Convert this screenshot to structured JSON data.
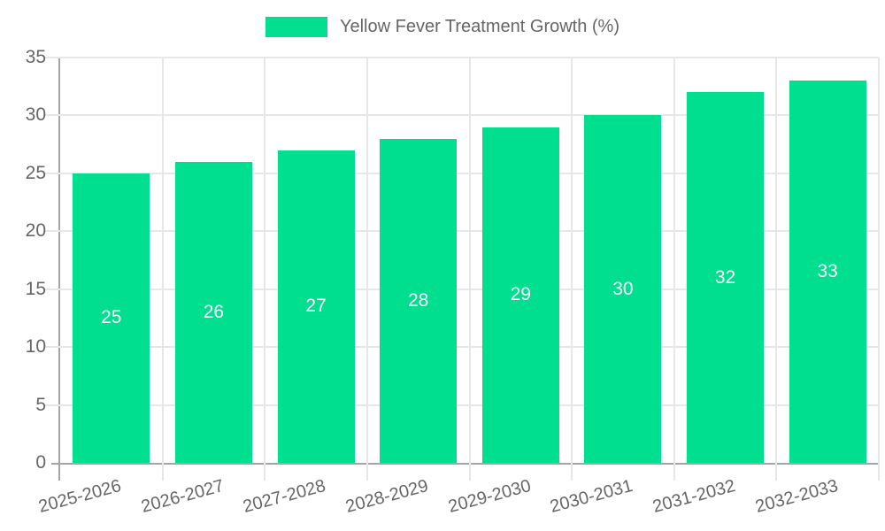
{
  "chart_data": {
    "type": "bar",
    "title": "Yellow Fever Treatment Growth (%)",
    "categories": [
      "2025-2026",
      "2026-2027",
      "2027-2028",
      "2028-2029",
      "2029-2030",
      "2030-2031",
      "2031-2032",
      "2032-2033"
    ],
    "values": [
      25,
      26,
      27,
      28,
      29,
      30,
      32,
      33
    ],
    "bar_value_labels": [
      "25",
      "26",
      "27",
      "28",
      "29",
      "30",
      "32",
      "33"
    ],
    "ylim": [
      0,
      35
    ],
    "yticks": [
      0,
      5,
      10,
      15,
      20,
      25,
      30,
      35
    ],
    "xlabel": "",
    "ylabel": "",
    "grid": true,
    "legend_position": "top-center",
    "colors": {
      "bar": "#00DF90",
      "bar_value_text": "#ffffff",
      "axis_line": "#a5a5a5",
      "gridline": "#e7e7e7",
      "tick_text": "#666666"
    }
  }
}
